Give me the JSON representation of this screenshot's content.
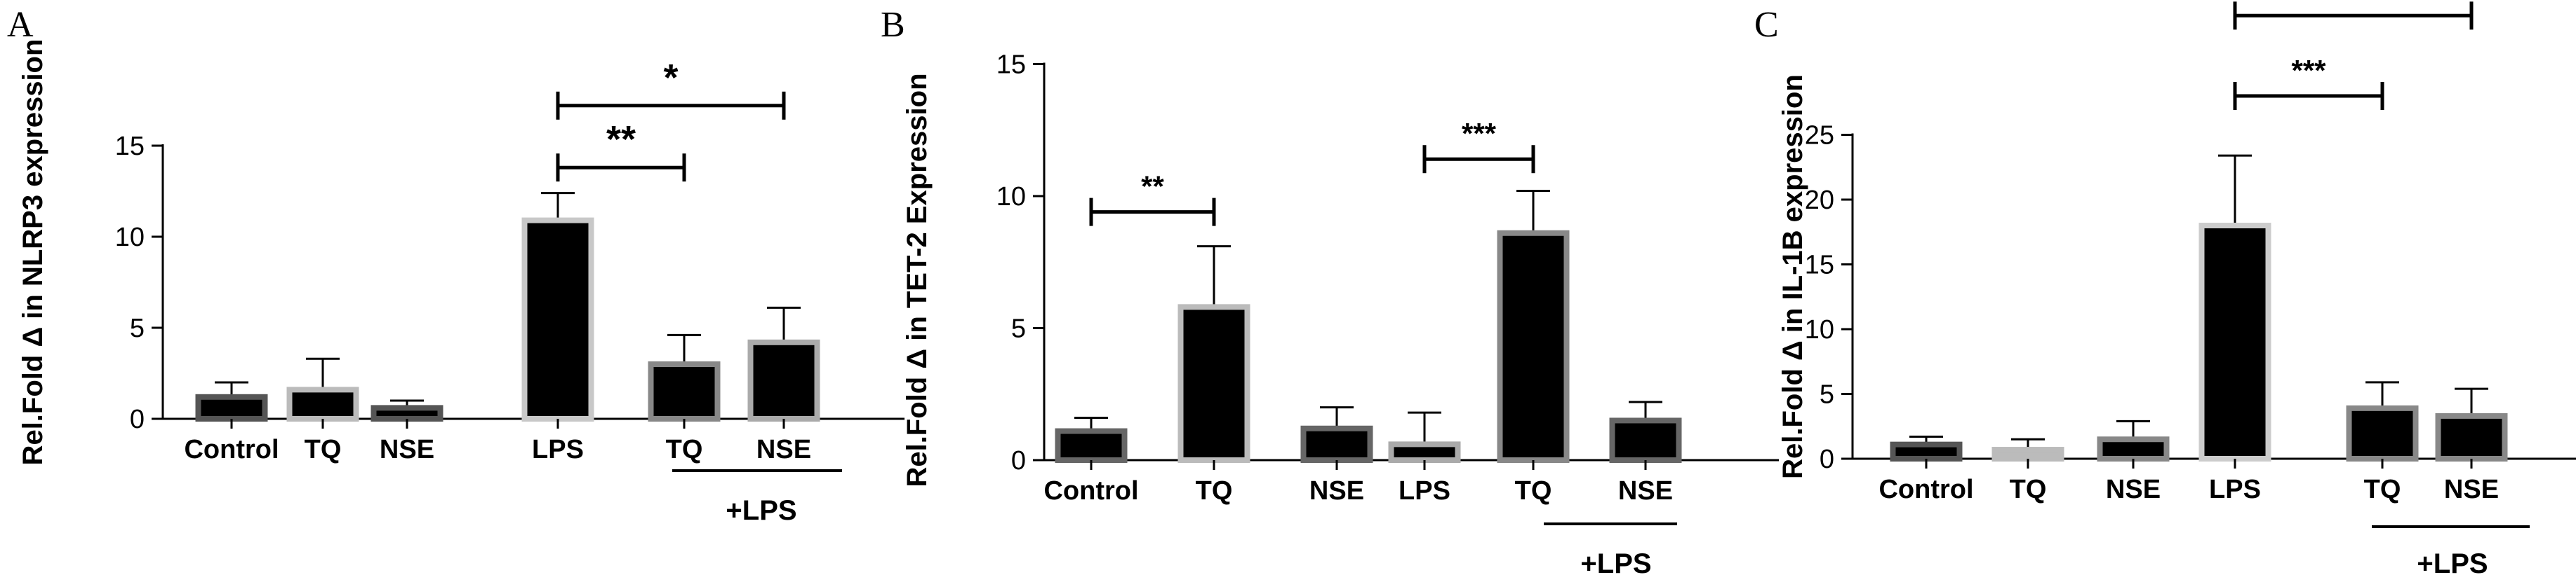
{
  "chart_data": [
    {
      "panel": "A",
      "type": "bar",
      "ylabel": "Rel.Fold Δ in NLRP3 expression",
      "categories": [
        "Control",
        "TQ",
        "NSE",
        "LPS",
        "TQ",
        "NSE"
      ],
      "group_label": "+LPS",
      "values": [
        1.2,
        1.6,
        0.6,
        10.9,
        3.0,
        4.2
      ],
      "errors": [
        0.8,
        1.7,
        0.4,
        1.5,
        1.6,
        1.9
      ],
      "fills": [
        "#000000",
        "#000000",
        "#000000",
        "#000000",
        "#000000",
        "#000000"
      ],
      "outlines": [
        "#555555",
        "#bbbbbb",
        "#555555",
        "#c8c8c8",
        "#888888",
        "#aaaaaa"
      ],
      "ylim": [
        0,
        15
      ],
      "yticks": [
        0,
        5,
        10,
        15
      ],
      "significance": [
        {
          "from": 3,
          "to": 4,
          "label": "**",
          "y": 13.8
        },
        {
          "from": 3,
          "to": 5,
          "label": "*",
          "y": 17.2
        }
      ]
    },
    {
      "panel": "B",
      "type": "bar",
      "ylabel": "Rel.Fold Δ in TET-2 Expression",
      "categories": [
        "Control",
        "TQ",
        "NSE",
        "LPS",
        "TQ",
        "NSE"
      ],
      "group_label": "+LPS",
      "values": [
        1.1,
        5.8,
        1.2,
        0.6,
        8.6,
        1.5
      ],
      "errors": [
        0.5,
        2.3,
        0.8,
        1.2,
        1.6,
        0.7
      ],
      "fills": [
        "#000000",
        "#000000",
        "#000000",
        "#000000",
        "#000000",
        "#000000"
      ],
      "outlines": [
        "#666666",
        "#bbbbbb",
        "#666666",
        "#aaaaaa",
        "#888888",
        "#666666"
      ],
      "ylim": [
        0,
        15
      ],
      "yticks": [
        0,
        5,
        10,
        15
      ],
      "significance": [
        {
          "from": 0,
          "to": 1,
          "label": "**",
          "y": 9.4
        },
        {
          "from": 3,
          "to": 4,
          "label": "***",
          "y": 11.4
        }
      ]
    },
    {
      "panel": "C",
      "type": "bar",
      "ylabel": "Rel.Fold Δ in IL-1B expression",
      "categories": [
        "Control",
        "TQ",
        "NSE",
        "LPS",
        "TQ",
        "NSE"
      ],
      "group_label": "+LPS",
      "values": [
        1.1,
        0.7,
        1.5,
        18.0,
        3.9,
        3.3
      ],
      "errors": [
        0.6,
        0.8,
        1.4,
        5.4,
        2.0,
        2.1
      ],
      "fills": [
        "#000000",
        "#bbbbbb",
        "#000000",
        "#000000",
        "#000000",
        "#000000"
      ],
      "outlines": [
        "#555555",
        "#bbbbbb",
        "#888888",
        "#cccccc",
        "#888888",
        "#888888"
      ],
      "ylim": [
        0,
        25
      ],
      "yticks": [
        0,
        5,
        10,
        15,
        20,
        25
      ],
      "significance": [
        {
          "from": 3,
          "to": 4,
          "label": "***",
          "y": 28.0
        },
        {
          "from": 3,
          "to": 5,
          "label": "***",
          "y": 34.2
        }
      ]
    }
  ]
}
